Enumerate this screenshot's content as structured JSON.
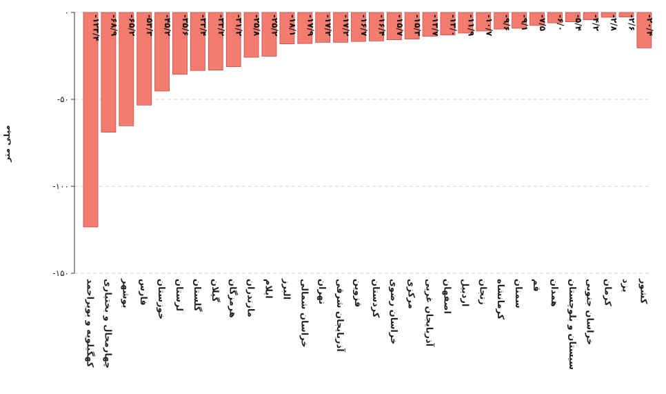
{
  "chart_data": {
    "type": "bar",
    "orientation": "vertical",
    "ylabel": "میلی متر",
    "ylim": [
      -150,
      0
    ],
    "yticks": [
      0,
      -50,
      -100,
      -150
    ],
    "ytick_labels": [
      "۰",
      "-۵۰",
      "-۱۰۰",
      "-۱۵۰"
    ],
    "grid": true,
    "bar_color": "#f47c6f",
    "bar_stroke": "#c0504d",
    "categories": [
      "کهگیلویه و بویراحمد",
      "چهارمحال و بختیاری",
      "بوشهر",
      "فارس",
      "خوزستان",
      "لرستان",
      "گلستان",
      "گیلان",
      "هرمزگان",
      "مازندران",
      "ایلام",
      "البرز",
      "خراسان شمالی",
      "تهران",
      "آذربایجان شرقی",
      "قزوین",
      "کردستان",
      "خراسان رضوی",
      "مرکزی",
      "آذربایجان غربی",
      "اصفهان",
      "اردبیل",
      "زنجان",
      "کرمانشاه",
      "سمنان",
      "قم",
      "همدان",
      "سیستان و بلوچستان",
      "خراسان جنوبی",
      "کرمان",
      "یزد",
      "کشور"
    ],
    "values": [
      -123.4,
      -68.9,
      -65.2,
      -53.3,
      -45.2,
      -35.6,
      -33.4,
      -33.2,
      -31.2,
      -25.8,
      -25.2,
      -18.1,
      -17.9,
      -17.2,
      -17.2,
      -16.7,
      -16.4,
      -15.7,
      -15.3,
      -13.7,
      -13.0,
      -11.9,
      -10.7,
      -9.6,
      -9.1,
      -7.5,
      -6.0,
      -5.4,
      -4.2,
      -2.8,
      -2.6,
      -20.4
    ],
    "value_labels": [
      "-۱۲۳/۴",
      "-۶۸/۹",
      "-۶۵/۲",
      "-۵۳/۳",
      "-۴۵/۲",
      "-۳۵/۶",
      "-۳۳/۴",
      "-۳۳/۲",
      "-۳۱/۲",
      "-۲۵/۸",
      "-۲۵/۲",
      "-۱۸/۱",
      "-۱۷/۹",
      "-۱۷/۲",
      "-۱۷/۲",
      "-۱۶/۷",
      "-۱۶/۴",
      "-۱۵/۷",
      "-۱۵/۳",
      "-۱۳/۷",
      "-۱۳/۰",
      "-۱۱/۹",
      "-۱۰/۷",
      "-۹/۶",
      "-۹/۱",
      "-۷/۵",
      "-۶/۰",
      "-۵/۴",
      "-۴/۲",
      "-۲/۸",
      "-۲/۶",
      "-۲۰/۴"
    ]
  }
}
